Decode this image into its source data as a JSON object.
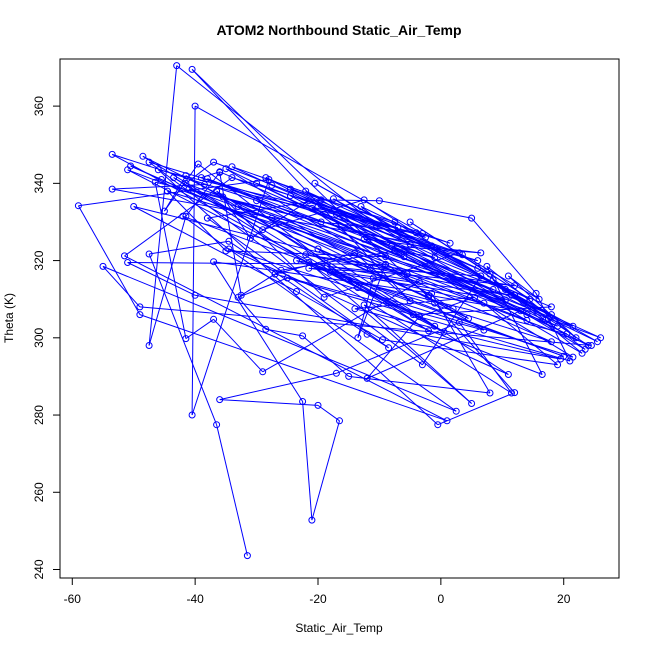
{
  "chart_data": {
    "type": "line",
    "title": "ATOM2 Northbound Static_Air_Temp",
    "xlabel": "Static_Air_Temp",
    "ylabel": "Theta (K)",
    "xlim": [
      -62,
      29
    ],
    "ylim": [
      237.8,
      372.2
    ],
    "xticks": [
      -60,
      -40,
      -20,
      0,
      20
    ],
    "yticks": [
      240,
      260,
      280,
      300,
      320,
      340,
      360
    ],
    "grid": false,
    "legend": "none",
    "series_color": "#0000ff",
    "marker": "open-circle",
    "series": [
      {
        "values": [
          [
            -31.5,
            243.6
          ],
          [
            -36.5,
            277.5
          ],
          [
            -47.5,
            321.7
          ],
          [
            -34.5,
            325
          ],
          [
            -12,
            300.9
          ],
          [
            -8.5,
            297.4
          ],
          [
            -38,
            331
          ],
          [
            -19.5,
            335.7
          ],
          [
            -10,
            335.5
          ],
          [
            5,
            331
          ],
          [
            15.5,
            311.5
          ],
          [
            21,
            294
          ],
          [
            -25,
            315.5
          ],
          [
            -33,
            310.5
          ],
          [
            -28.5,
            302.2
          ],
          [
            -22.5,
            300.5
          ],
          [
            -15,
            290
          ],
          [
            8,
            285.7
          ],
          [
            -1.5,
            311.5
          ],
          [
            -37,
            319.7
          ],
          [
            -22.5,
            283.5
          ],
          [
            -21,
            252.8
          ],
          [
            -16.5,
            278.5
          ],
          [
            -20,
            282.5
          ],
          [
            -36,
            284
          ],
          [
            -17,
            290.8
          ],
          [
            3,
            304
          ],
          [
            11.5,
            285.7
          ],
          [
            -43.5,
            341.5
          ],
          [
            -29,
            328
          ],
          [
            -12.5,
            335.7
          ],
          [
            13.5,
            309
          ],
          [
            26,
            300
          ],
          [
            -41.5,
            340
          ],
          [
            -37,
            345.5
          ],
          [
            -10.5,
            329.2
          ],
          [
            -43,
            370.5
          ],
          [
            -47.5,
            298
          ],
          [
            -41.5,
            331.5
          ],
          [
            -36,
            342.8
          ],
          [
            -32.5,
            311
          ],
          [
            -26,
            317.5
          ],
          [
            -7.5,
            322.5
          ],
          [
            -6,
            322.3
          ],
          [
            -1,
            320.8
          ],
          [
            -53.5,
            347.5
          ],
          [
            -13.5,
            313
          ],
          [
            -39.5,
            345
          ],
          [
            -45,
            332.8
          ],
          [
            -41.5,
            342
          ],
          [
            0.5,
            301.5
          ],
          [
            -51,
            343.5
          ],
          [
            24.5,
            298
          ],
          [
            -49,
            308
          ],
          [
            -55,
            318.5
          ],
          [
            2.5,
            281
          ],
          [
            -42,
            331.5
          ],
          [
            20,
            295.2
          ],
          [
            -23.5,
            320
          ],
          [
            -3.5,
            314.5
          ],
          [
            -29,
            291.2
          ],
          [
            -37,
            304.8
          ],
          [
            -41.5,
            299.8
          ],
          [
            -46.5,
            340.3
          ],
          [
            -19.5,
            330
          ],
          [
            -3,
            327
          ],
          [
            -40,
            360
          ],
          [
            -40.5,
            280
          ],
          [
            -28,
            341
          ],
          [
            -59,
            334.2
          ],
          [
            -49,
            306
          ],
          [
            1,
            278.5
          ],
          [
            -51.5,
            321.2
          ],
          [
            -34,
            341.5
          ],
          [
            -7,
            328.5
          ],
          [
            -46,
            343.5
          ],
          [
            -0.5,
            277.5
          ],
          [
            12,
            285.8
          ],
          [
            -1,
            309
          ],
          [
            -40.5,
            369.5
          ],
          [
            -5,
            309.5
          ],
          [
            -14,
            322
          ],
          [
            -27,
            316.5
          ],
          [
            7,
            302
          ],
          [
            -2,
            310.5
          ],
          [
            -45.5,
            341
          ],
          [
            -50.5,
            344.5
          ],
          [
            2,
            307.5
          ],
          [
            -20,
            323
          ],
          [
            11,
            290.5
          ],
          [
            -34.5,
            323
          ],
          [
            21.5,
            295
          ],
          [
            -17,
            332
          ],
          [
            -9,
            321
          ],
          [
            -35,
            322.5
          ],
          [
            -44.5,
            338
          ],
          [
            8.5,
            312.5
          ],
          [
            -35.5,
            336.5
          ],
          [
            -31,
            325.8
          ],
          [
            -21.5,
            335.5
          ],
          [
            3,
            322
          ],
          [
            -19,
            310.5
          ],
          [
            -36.5,
            338
          ],
          [
            -2,
            301.8
          ],
          [
            -48.5,
            347
          ],
          [
            4.5,
            305
          ],
          [
            -35,
            343.8
          ],
          [
            14,
            306
          ],
          [
            -30,
            335.5
          ],
          [
            -11.5,
            318
          ],
          [
            6.5,
            316
          ],
          [
            -3,
            293
          ],
          [
            -47.5,
            345.5
          ],
          [
            6,
            320
          ],
          [
            -41,
            338.5
          ],
          [
            19,
            303
          ],
          [
            -30,
            340
          ],
          [
            -1.5,
            323.8
          ],
          [
            -53.5,
            338.5
          ],
          [
            -38.5,
            339.7
          ],
          [
            -4,
            327.2
          ],
          [
            1.5,
            324.5
          ],
          [
            -34,
            344.3
          ],
          [
            -27.5,
            339.5
          ],
          [
            -5,
            324.3
          ],
          [
            -13,
            334
          ],
          [
            -2.5,
            326
          ],
          [
            -24.5,
            336.8
          ],
          [
            -6,
            321
          ],
          [
            -39,
            341.5
          ],
          [
            -36,
            343
          ],
          [
            18,
            306
          ],
          [
            -20.5,
            340
          ],
          [
            -1,
            322.5
          ],
          [
            21.5,
            303
          ],
          [
            -38,
            341.2
          ],
          [
            10.5,
            312.5
          ],
          [
            24,
            298
          ],
          [
            -28.5,
            341.5
          ],
          [
            8,
            316.5
          ],
          [
            -5,
            330
          ],
          [
            14.5,
            310
          ],
          [
            -24.5,
            338.5
          ],
          [
            -7.5,
            330
          ],
          [
            17.5,
            305
          ],
          [
            6,
            318
          ],
          [
            -22,
            338
          ],
          [
            23,
            296
          ],
          [
            8.5,
            315
          ],
          [
            17,
            304.5
          ],
          [
            23.5,
            297
          ],
          [
            -17.5,
            336
          ],
          [
            12,
            311
          ],
          [
            25.5,
            299
          ],
          [
            -20,
            334
          ],
          [
            3.5,
            321.5
          ],
          [
            16,
            310
          ],
          [
            11,
            316
          ],
          [
            22,
            300
          ],
          [
            7.5,
            318.5
          ],
          [
            16.5,
            290.5
          ],
          [
            -12.5,
            308.5
          ],
          [
            5,
            283
          ],
          [
            -21.5,
            319.5
          ],
          [
            -4.5,
            306
          ],
          [
            18,
            308
          ],
          [
            -21,
            333.5
          ],
          [
            -2,
            311
          ],
          [
            13,
            307
          ],
          [
            -12,
            289.5
          ],
          [
            -3.5,
            305.5
          ],
          [
            5.5,
            310.5
          ],
          [
            -14,
            307.5
          ],
          [
            19.5,
            294.5
          ],
          [
            -40,
            311
          ],
          [
            -51,
            319.5
          ],
          [
            -9,
            319
          ],
          [
            -13.5,
            300
          ],
          [
            -11,
            315.5
          ],
          [
            7,
            309
          ],
          [
            19,
            293
          ],
          [
            -9.5,
            299.5
          ],
          [
            -23.5,
            312
          ],
          [
            -50,
            334
          ],
          [
            -5.5,
            316.5
          ],
          [
            -21.5,
            318
          ],
          [
            11.5,
            311
          ],
          [
            -22,
            321.5
          ],
          [
            12,
            313.5
          ],
          [
            -18.5,
            318.5
          ],
          [
            -1,
            303
          ],
          [
            -15,
            315
          ],
          [
            20.5,
            301
          ],
          [
            -12.5,
            325.5
          ],
          [
            6.5,
            322
          ],
          [
            -8,
            323.8
          ],
          [
            14,
            304.5
          ],
          [
            -33,
            334
          ],
          [
            10.5,
            309.8
          ],
          [
            -18,
            317
          ],
          [
            18,
            299
          ],
          [
            -27.5,
            331
          ]
        ]
      }
    ]
  }
}
